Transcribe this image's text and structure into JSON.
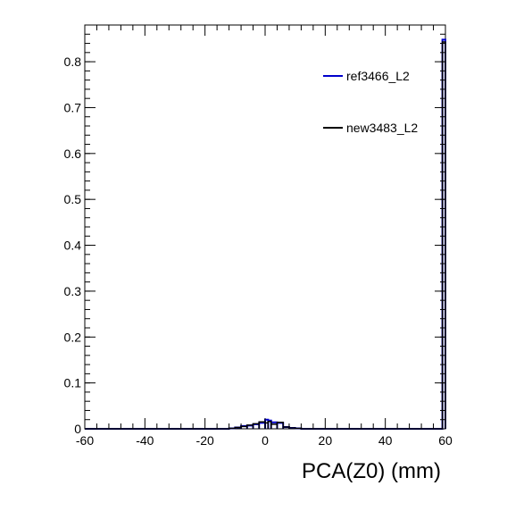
{
  "chart_data": {
    "type": "step-histogram",
    "xlabel": "PCA(Z0) (mm)",
    "ylabel": "",
    "xlim": [
      -60,
      60
    ],
    "ylim": [
      0,
      0.88
    ],
    "xticks": [
      -60,
      -40,
      -20,
      0,
      20,
      40,
      60
    ],
    "yticks": [
      0,
      0.1,
      0.2,
      0.3,
      0.4,
      0.5,
      0.6,
      0.7,
      0.8
    ],
    "legend_placement": "top-right",
    "series": [
      {
        "name": "ref3466_L2",
        "color": "#0000cc",
        "bins": [
          [
            -12,
            -10,
            0.001
          ],
          [
            -10,
            -8,
            0.003
          ],
          [
            -8,
            -6,
            0.006
          ],
          [
            -6,
            -4,
            0.007
          ],
          [
            -4,
            -2,
            0.01
          ],
          [
            -2,
            0,
            0.013
          ],
          [
            0,
            1,
            0.02
          ],
          [
            1,
            2,
            0.018
          ],
          [
            2,
            4,
            0.014
          ],
          [
            4,
            6,
            0.013
          ],
          [
            6,
            8,
            0.004
          ],
          [
            8,
            10,
            0.002
          ],
          [
            10,
            12,
            0.001
          ],
          [
            59,
            60,
            0.848
          ]
        ]
      },
      {
        "name": "new3483_L2",
        "color": "#000000",
        "bins": [
          [
            -12,
            -10,
            0.001
          ],
          [
            -10,
            -8,
            0.003
          ],
          [
            -8,
            -6,
            0.005
          ],
          [
            -6,
            -4,
            0.008
          ],
          [
            -4,
            -2,
            0.011
          ],
          [
            -2,
            0,
            0.015
          ],
          [
            0,
            1,
            0.013
          ],
          [
            1,
            2,
            0.016
          ],
          [
            2,
            4,
            0.01
          ],
          [
            4,
            6,
            0.014
          ],
          [
            6,
            8,
            0.004
          ],
          [
            8,
            10,
            0.002
          ],
          [
            10,
            12,
            0.001
          ],
          [
            59,
            60,
            0.843
          ]
        ]
      }
    ]
  }
}
